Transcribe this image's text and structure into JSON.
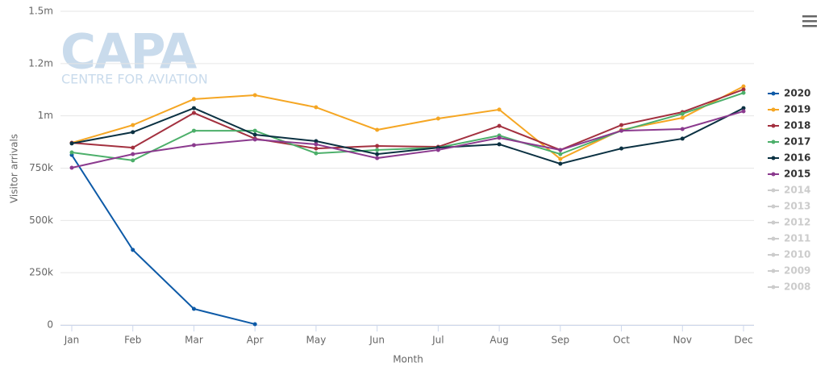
{
  "chart_data": {
    "type": "line",
    "watermark": {
      "title": "CAPA",
      "subtitle": "CENTRE FOR AVIATION"
    },
    "xlabel": "Month",
    "ylabel": "Visitor arrivals",
    "categories": [
      "Jan",
      "Feb",
      "Mar",
      "Apr",
      "May",
      "Jun",
      "Jul",
      "Aug",
      "Sep",
      "Oct",
      "Nov",
      "Dec"
    ],
    "ylim": [
      0,
      1500000
    ],
    "yticks": [
      0,
      {
        "value": 250000,
        "label": "250k"
      },
      {
        "value": 500000,
        "label": "500k"
      },
      {
        "value": 750000,
        "label": "750k"
      },
      {
        "value": 1000000,
        "label": "1m"
      },
      {
        "value": 1250000,
        "label": "1.2m"
      },
      {
        "value": 1500000,
        "label": "1.5m"
      }
    ],
    "grid": true,
    "legend": "right",
    "series": [
      {
        "name": "2020",
        "color": "#0d5aa7",
        "visible": true,
        "values": [
          813000,
          359000,
          77000,
          4000,
          null,
          null,
          null,
          null,
          null,
          null,
          null,
          null
        ]
      },
      {
        "name": "2019",
        "color": "#f5a623",
        "visible": true,
        "values": [
          871000,
          956000,
          1080000,
          1099000,
          1041000,
          933000,
          987000,
          1030000,
          794000,
          933000,
          991000,
          1141000
        ]
      },
      {
        "name": "2018",
        "color": "#a3303f",
        "visible": true,
        "values": [
          871000,
          848000,
          1014000,
          891000,
          844000,
          856000,
          852000,
          952000,
          837000,
          956000,
          1018000,
          1126000
        ]
      },
      {
        "name": "2017",
        "color": "#4caf6a",
        "visible": true,
        "values": [
          825000,
          787000,
          929000,
          929000,
          821000,
          837000,
          848000,
          906000,
          817000,
          929000,
          1010000,
          1110000
        ]
      },
      {
        "name": "2016",
        "color": "#0b3142",
        "visible": true,
        "values": [
          868000,
          922000,
          1037000,
          910000,
          879000,
          817000,
          848000,
          864000,
          771000,
          844000,
          891000,
          1037000
        ]
      },
      {
        "name": "2015",
        "color": "#8b3a8e",
        "visible": true,
        "values": [
          752000,
          817000,
          860000,
          887000,
          864000,
          798000,
          837000,
          895000,
          837000,
          929000,
          937000,
          1022000
        ]
      },
      {
        "name": "2014",
        "color": "#cccccc",
        "visible": false,
        "values": [
          null,
          null,
          null,
          null,
          null,
          null,
          null,
          null,
          null,
          null,
          null,
          null
        ]
      },
      {
        "name": "2013",
        "color": "#cccccc",
        "visible": false,
        "values": [
          null,
          null,
          null,
          null,
          null,
          null,
          null,
          null,
          null,
          null,
          null,
          null
        ]
      },
      {
        "name": "2012",
        "color": "#cccccc",
        "visible": false,
        "values": [
          null,
          null,
          null,
          null,
          null,
          null,
          null,
          null,
          null,
          null,
          null,
          null
        ]
      },
      {
        "name": "2011",
        "color": "#cccccc",
        "visible": false,
        "values": [
          null,
          null,
          null,
          null,
          null,
          null,
          null,
          null,
          null,
          null,
          null,
          null
        ]
      },
      {
        "name": "2010",
        "color": "#cccccc",
        "visible": false,
        "values": [
          null,
          null,
          null,
          null,
          null,
          null,
          null,
          null,
          null,
          null,
          null,
          null
        ]
      },
      {
        "name": "2009",
        "color": "#cccccc",
        "visible": false,
        "values": [
          null,
          null,
          null,
          null,
          null,
          null,
          null,
          null,
          null,
          null,
          null,
          null
        ]
      },
      {
        "name": "2008",
        "color": "#cccccc",
        "visible": false,
        "values": [
          null,
          null,
          null,
          null,
          null,
          null,
          null,
          null,
          null,
          null,
          null,
          null
        ]
      }
    ]
  }
}
